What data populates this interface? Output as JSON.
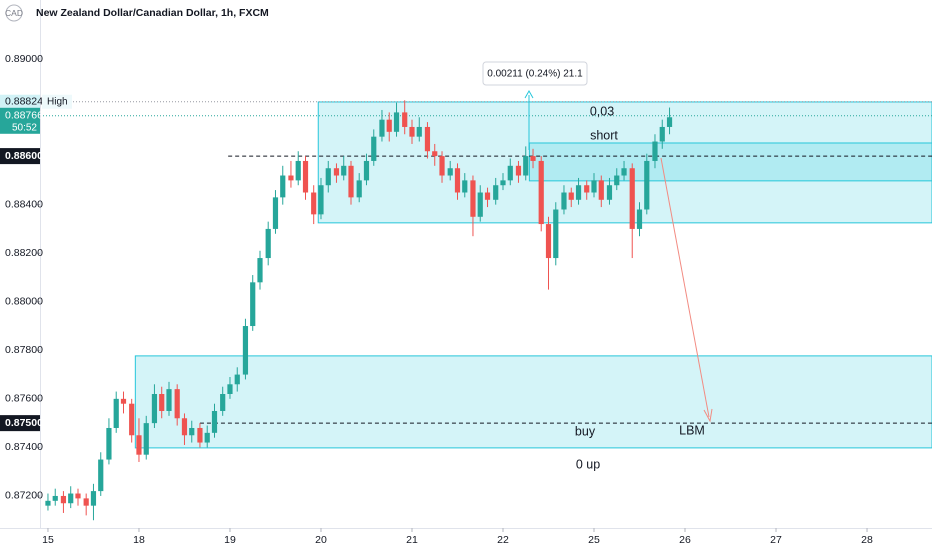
{
  "chart_data": {
    "type": "candlestick",
    "title": "New Zealand Dollar/Canadian Dollar, 1h, FXCM",
    "currency": "CAD",
    "up_color": "#26a69a",
    "down_color": "#ef5350",
    "ylim": [
      0.87068,
      0.89243
    ],
    "yticks": [
      {
        "value": 0.89,
        "label": "0.89000"
      },
      {
        "value": 0.884,
        "label": "0.88400"
      },
      {
        "value": 0.882,
        "label": "0.88200"
      },
      {
        "value": 0.88,
        "label": "0.88000"
      },
      {
        "value": 0.878,
        "label": "0.87800"
      },
      {
        "value": 0.876,
        "label": "0.87600"
      },
      {
        "value": 0.874,
        "label": "0.87400"
      },
      {
        "value": 0.872,
        "label": "0.87200"
      }
    ],
    "xlim": [
      -0.527,
      9.714
    ],
    "xticks": [
      {
        "value": 0,
        "label": "15"
      },
      {
        "value": 1,
        "label": "18"
      },
      {
        "value": 2,
        "label": "19"
      },
      {
        "value": 3,
        "label": "20"
      },
      {
        "value": 4,
        "label": "21"
      },
      {
        "value": 5,
        "label": "22"
      },
      {
        "value": 6,
        "label": "25"
      },
      {
        "value": 7,
        "label": "26"
      },
      {
        "value": 8,
        "label": "27"
      },
      {
        "value": 9,
        "label": "28"
      }
    ],
    "x": [
      0,
      0.08,
      0.17,
      0.25,
      0.33,
      0.42,
      0.5,
      0.58,
      0.67,
      0.75,
      0.83,
      0.92,
      1,
      1.08,
      1.17,
      1.25,
      1.33,
      1.42,
      1.5,
      1.58,
      1.67,
      1.75,
      1.83,
      1.92,
      2,
      2.08,
      2.17,
      2.25,
      2.33,
      2.42,
      2.5,
      2.58,
      2.67,
      2.75,
      2.83,
      2.92,
      3,
      3.08,
      3.17,
      3.25,
      3.33,
      3.42,
      3.5,
      3.58,
      3.67,
      3.75,
      3.83,
      3.92,
      4,
      4.08,
      4.17,
      4.25,
      4.33,
      4.42,
      4.5,
      4.58,
      4.67,
      4.75,
      4.83,
      4.92,
      5,
      5.08,
      5.17,
      5.25,
      5.33,
      5.42,
      5.5,
      5.58,
      5.67,
      5.75,
      5.83,
      5.92,
      6,
      6.08,
      6.17,
      6.25,
      6.33,
      6.42,
      6.5,
      6.58,
      6.67,
      6.75,
      6.83
    ],
    "candles": [
      [
        0.8716,
        0.8721,
        0.8714,
        0.8718
      ],
      [
        0.8718,
        0.8723,
        0.8716,
        0.872
      ],
      [
        0.872,
        0.8722,
        0.8713,
        0.8717
      ],
      [
        0.8717,
        0.8724,
        0.8715,
        0.8721
      ],
      [
        0.8721,
        0.8723,
        0.8716,
        0.8719
      ],
      [
        0.8719,
        0.8721,
        0.8712,
        0.8716
      ],
      [
        0.8716,
        0.8725,
        0.871,
        0.8722
      ],
      [
        0.8722,
        0.8738,
        0.872,
        0.8735
      ],
      [
        0.8735,
        0.8752,
        0.8733,
        0.8748
      ],
      [
        0.8748,
        0.8763,
        0.8746,
        0.876
      ],
      [
        0.876,
        0.8763,
        0.8754,
        0.8758
      ],
      [
        0.8758,
        0.876,
        0.8742,
        0.8745
      ],
      [
        0.8745,
        0.8752,
        0.8734,
        0.8737
      ],
      [
        0.8737,
        0.8753,
        0.8735,
        0.875
      ],
      [
        0.875,
        0.8766,
        0.8748,
        0.8762
      ],
      [
        0.8762,
        0.8765,
        0.8752,
        0.8755
      ],
      [
        0.8755,
        0.8767,
        0.8753,
        0.8764
      ],
      [
        0.8764,
        0.8766,
        0.8749,
        0.8752
      ],
      [
        0.8752,
        0.8754,
        0.8741,
        0.8745
      ],
      [
        0.8745,
        0.8751,
        0.8742,
        0.8748
      ],
      [
        0.8748,
        0.875,
        0.874,
        0.8742
      ],
      [
        0.8742,
        0.8749,
        0.874,
        0.8746
      ],
      [
        0.8746,
        0.8758,
        0.8744,
        0.8755
      ],
      [
        0.8755,
        0.8765,
        0.8753,
        0.8762
      ],
      [
        0.8762,
        0.8769,
        0.876,
        0.8766
      ],
      [
        0.8766,
        0.8773,
        0.8763,
        0.877
      ],
      [
        0.877,
        0.8793,
        0.8768,
        0.879
      ],
      [
        0.879,
        0.8811,
        0.8788,
        0.8808
      ],
      [
        0.8808,
        0.8821,
        0.8805,
        0.8818
      ],
      [
        0.8818,
        0.8833,
        0.8815,
        0.883
      ],
      [
        0.883,
        0.8846,
        0.8828,
        0.8843
      ],
      [
        0.8843,
        0.8856,
        0.884,
        0.8852
      ],
      [
        0.8852,
        0.8858,
        0.8847,
        0.885
      ],
      [
        0.885,
        0.8862,
        0.8848,
        0.8858
      ],
      [
        0.8858,
        0.886,
        0.8842,
        0.8845
      ],
      [
        0.8845,
        0.8848,
        0.8832,
        0.8836
      ],
      [
        0.8836,
        0.8851,
        0.8834,
        0.8848
      ],
      [
        0.8848,
        0.8858,
        0.8845,
        0.8855
      ],
      [
        0.8855,
        0.8857,
        0.8849,
        0.8852
      ],
      [
        0.8852,
        0.886,
        0.885,
        0.8856
      ],
      [
        0.8856,
        0.8858,
        0.884,
        0.8843
      ],
      [
        0.8843,
        0.8853,
        0.8841,
        0.885
      ],
      [
        0.885,
        0.8861,
        0.8848,
        0.8858
      ],
      [
        0.8858,
        0.8871,
        0.8856,
        0.8868
      ],
      [
        0.8868,
        0.8879,
        0.8866,
        0.8875
      ],
      [
        0.8875,
        0.8878,
        0.8866,
        0.887
      ],
      [
        0.887,
        0.8882,
        0.8868,
        0.8878
      ],
      [
        0.8878,
        0.8883,
        0.8869,
        0.8872
      ],
      [
        0.8872,
        0.8875,
        0.8865,
        0.8868
      ],
      [
        0.8868,
        0.8876,
        0.8866,
        0.8872
      ],
      [
        0.8872,
        0.8874,
        0.8859,
        0.8862
      ],
      [
        0.8862,
        0.8865,
        0.8856,
        0.886
      ],
      [
        0.886,
        0.8862,
        0.8849,
        0.8852
      ],
      [
        0.8852,
        0.8858,
        0.885,
        0.8855
      ],
      [
        0.8855,
        0.8857,
        0.8842,
        0.8845
      ],
      [
        0.8845,
        0.8853,
        0.8843,
        0.885
      ],
      [
        0.885,
        0.8852,
        0.8827,
        0.8835
      ],
      [
        0.8835,
        0.8848,
        0.8833,
        0.8845
      ],
      [
        0.8845,
        0.8847,
        0.8839,
        0.8842
      ],
      [
        0.8842,
        0.8851,
        0.884,
        0.8848
      ],
      [
        0.8848,
        0.8853,
        0.8846,
        0.885
      ],
      [
        0.885,
        0.8859,
        0.8848,
        0.8856
      ],
      [
        0.8856,
        0.8858,
        0.8849,
        0.8852
      ],
      [
        0.8852,
        0.8864,
        0.885,
        0.886
      ],
      [
        0.886,
        0.8863,
        0.8855,
        0.8858
      ],
      [
        0.8858,
        0.886,
        0.8829,
        0.8832
      ],
      [
        0.8832,
        0.8835,
        0.8805,
        0.8818
      ],
      [
        0.8818,
        0.8841,
        0.8815,
        0.8838
      ],
      [
        0.8838,
        0.8848,
        0.8836,
        0.8845
      ],
      [
        0.8845,
        0.8847,
        0.8839,
        0.8842
      ],
      [
        0.8842,
        0.8851,
        0.884,
        0.8848
      ],
      [
        0.8848,
        0.885,
        0.8842,
        0.8845
      ],
      [
        0.8845,
        0.8853,
        0.8843,
        0.885
      ],
      [
        0.885,
        0.8852,
        0.8839,
        0.8842
      ],
      [
        0.8842,
        0.8851,
        0.884,
        0.8848
      ],
      [
        0.8848,
        0.8855,
        0.8846,
        0.8852
      ],
      [
        0.8852,
        0.8858,
        0.885,
        0.8855
      ],
      [
        0.8855,
        0.8857,
        0.8818,
        0.883
      ],
      [
        0.883,
        0.8841,
        0.8827,
        0.8838
      ],
      [
        0.8838,
        0.8861,
        0.8836,
        0.8858
      ],
      [
        0.8858,
        0.8869,
        0.8855,
        0.8866
      ],
      [
        0.8866,
        0.8875,
        0.8863,
        0.8872
      ],
      [
        0.8872,
        0.888,
        0.8869,
        0.8876
      ]
    ],
    "zones": [
      {
        "from": 2.97,
        "top": 0.88823,
        "bottom": 0.88325
      },
      {
        "from": 5.29,
        "top": 0.88654,
        "bottom": 0.88498
      },
      {
        "from": 0.96,
        "top": 0.87777,
        "bottom": 0.87398
      }
    ],
    "levels": [
      {
        "value": 0.886,
        "label": "0.88600",
        "from": 1.98
      },
      {
        "value": 0.875,
        "label": "0.87500",
        "from": 1.67
      }
    ],
    "high": {
      "value": 0.88824,
      "label": "0.88824",
      "text": "High"
    },
    "last_price": {
      "value": 0.88766,
      "label": "0.88766",
      "countdown": "50:52"
    },
    "measure_label": "0.00211 (0.24%) 21.1",
    "annotations": [
      "0,03",
      "short",
      "buy",
      "LBM",
      "0 up"
    ]
  }
}
